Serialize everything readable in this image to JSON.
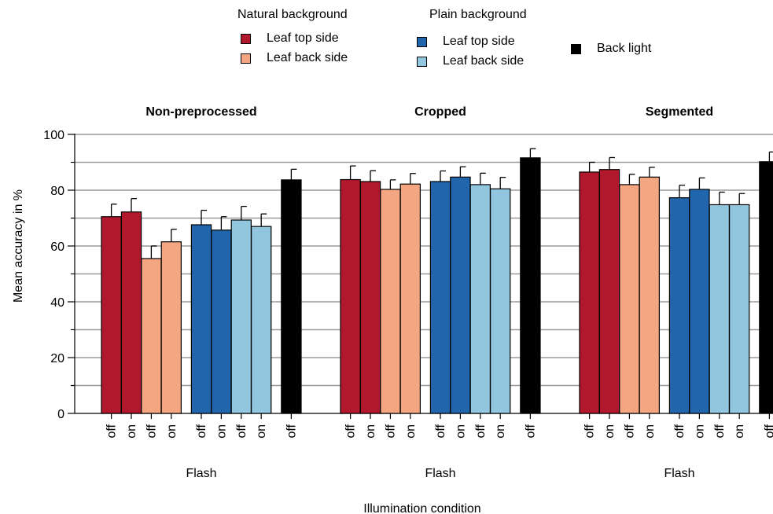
{
  "legend": {
    "natural_title": "Natural background",
    "plain_title": "Plain background",
    "natural_items": [
      {
        "label": "Leaf top side",
        "color": "#b2182b"
      },
      {
        "label": "Leaf back side",
        "color": "#f4a582"
      }
    ],
    "plain_items": [
      {
        "label": "Leaf top side",
        "color": "#2166ac"
      },
      {
        "label": "Leaf back side",
        "color": "#92c5de"
      }
    ],
    "back_light": {
      "label": "Back light",
      "color": "#000000"
    }
  },
  "chart_data": {
    "type": "bar",
    "ylabel": "Mean accuracy in %",
    "xlabel": "Illumination condition",
    "ylim": [
      0,
      100
    ],
    "yticks": [
      0,
      20,
      40,
      60,
      80,
      100
    ],
    "grid": true,
    "error_bars": true,
    "legend_position": "top",
    "bar_labels": [
      "off",
      "on",
      "off",
      "on",
      "off",
      "on",
      "off",
      "on",
      "off"
    ],
    "bar_series": [
      "Natural background - Leaf top side",
      "Natural background - Leaf top side",
      "Natural background - Leaf back side",
      "Natural background - Leaf back side",
      "Plain background - Leaf top side",
      "Plain background - Leaf top side",
      "Plain background - Leaf back side",
      "Plain background - Leaf back side",
      "Back light"
    ],
    "bar_colors": [
      "#b2182b",
      "#b2182b",
      "#f4a582",
      "#f4a582",
      "#2166ac",
      "#2166ac",
      "#92c5de",
      "#92c5de",
      "#000000"
    ],
    "panels": [
      {
        "title": "Non-preprocessed",
        "group_label": "Flash",
        "values": [
          70.5,
          72.2,
          55.5,
          61.5,
          67.6,
          65.7,
          69.3,
          67.0,
          83.7
        ],
        "errors": [
          4.5,
          4.8,
          4.5,
          4.5,
          5.2,
          4.8,
          4.9,
          4.5,
          3.8
        ]
      },
      {
        "title": "Cropped",
        "group_label": "Flash",
        "values": [
          83.8,
          83.1,
          80.3,
          82.2,
          83.1,
          84.7,
          82.0,
          80.5,
          91.6
        ],
        "errors": [
          4.9,
          3.9,
          3.4,
          3.8,
          3.8,
          3.7,
          4.1,
          4.1,
          3.3
        ]
      },
      {
        "title": "Segmented",
        "group_label": "Flash",
        "values": [
          86.5,
          87.4,
          82.0,
          84.7,
          77.3,
          80.3,
          74.8,
          74.8,
          90.2
        ],
        "errors": [
          3.5,
          4.3,
          3.7,
          3.5,
          4.5,
          4.1,
          4.5,
          4.0,
          3.5
        ]
      }
    ]
  }
}
